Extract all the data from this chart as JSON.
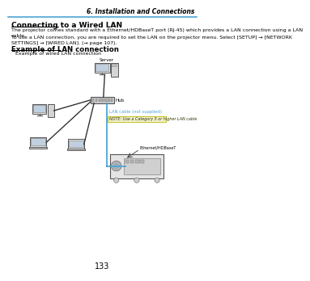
{
  "page_num": "133",
  "header_text": "6. Installation and Connections",
  "header_line_color": "#4da6d4",
  "title": "Connecting to a Wired LAN",
  "body1": "The projector comes standard with a Ethernet/HDBaseT port (RJ-45) which provides a LAN connection using a LAN\ncable.",
  "body2": "To use a LAN connection, you are required to set the LAN on the projector menu. Select [SETUP] → [NETWORK\nSETTINGS] → [WIRED LAN]. (→ page 107).",
  "section_title": "Example of LAN connection",
  "sub_label": "Example of wired LAN connection",
  "label_server": "Server",
  "label_hub": "Hub",
  "label_lan_cable": "LAN cable (not supplied)",
  "label_note": "NOTE: Use a Category 5 or higher LAN cable",
  "label_ethernet": "Ethernet/HDBaseT",
  "bg_color": "#ffffff",
  "text_color": "#000000",
  "blue_line_color": "#4da6d4",
  "note_bg_color": "#f0f0d0"
}
